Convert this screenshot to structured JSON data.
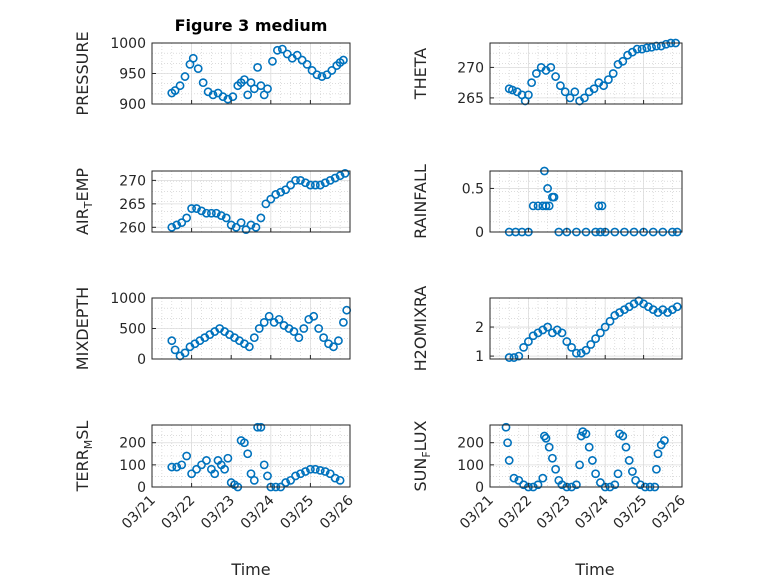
{
  "title": "Figure 3 medium",
  "xlabel": "Time",
  "x_ticks": [
    "03/21",
    "03/22",
    "03/23",
    "03/24",
    "03/25",
    "03/26"
  ],
  "marker_color": "#0072BD",
  "chart_data": [
    {
      "type": "scatter",
      "ylabel": "PRESSURE",
      "ylim": [
        900,
        1000
      ],
      "yticks": [
        "1000",
        "950",
        "900"
      ],
      "ytick_values": [
        1000,
        950,
        900
      ],
      "grid": true,
      "x": [
        "03/21 12:00",
        "03/21 14:00",
        "03/21 17:00",
        "03/21 20:00",
        "03/21 23:00",
        "03/22 01:00",
        "03/22 04:00",
        "03/22 07:00",
        "03/22 10:00",
        "03/22 13:00",
        "03/22 16:00",
        "03/22 19:00",
        "03/22 22:00",
        "03/23 01:00",
        "03/23 04:00",
        "03/23 06:00",
        "03/23 08:00",
        "03/23 10:00",
        "03/23 12:00",
        "03/23 14:00",
        "03/23 16:00",
        "03/23 18:00",
        "03/23 20:00",
        "03/23 22:00",
        "03/24 01:00",
        "03/24 04:00",
        "03/24 07:00",
        "03/24 10:00",
        "03/24 13:00",
        "03/24 16:00",
        "03/24 19:00",
        "03/24 22:00",
        "03/25 01:00",
        "03/25 04:00",
        "03/25 07:00",
        "03/25 10:00",
        "03/25 13:00",
        "03/25 16:00",
        "03/25 18:00",
        "03/25 20:00"
      ],
      "values": [
        918,
        922,
        930,
        945,
        965,
        975,
        958,
        935,
        920,
        915,
        918,
        912,
        908,
        912,
        930,
        935,
        940,
        915,
        935,
        925,
        960,
        930,
        915,
        925,
        970,
        988,
        990,
        982,
        975,
        980,
        972,
        965,
        955,
        948,
        945,
        948,
        955,
        963,
        968,
        972
      ]
    },
    {
      "type": "scatter",
      "ylabel": "THETA",
      "ylim": [
        264,
        274
      ],
      "yticks": [
        "270",
        "265"
      ],
      "ytick_values": [
        270,
        265
      ],
      "grid": true,
      "x": [
        "03/21 12:00",
        "03/21 14:00",
        "03/21 17:00",
        "03/21 20:00",
        "03/21 22:00",
        "03/22 00:00",
        "03/22 02:00",
        "03/22 05:00",
        "03/22 08:00",
        "03/22 11:00",
        "03/22 14:00",
        "03/22 17:00",
        "03/22 20:00",
        "03/22 23:00",
        "03/23 02:00",
        "03/23 05:00",
        "03/23 08:00",
        "03/23 11:00",
        "03/23 14:00",
        "03/23 17:00",
        "03/23 20:00",
        "03/23 23:00",
        "03/24 02:00",
        "03/24 05:00",
        "03/24 08:00",
        "03/24 11:00",
        "03/24 14:00",
        "03/24 17:00",
        "03/24 20:00",
        "03/24 23:00",
        "03/25 02:00",
        "03/25 05:00",
        "03/25 08:00",
        "03/25 11:00",
        "03/25 14:00",
        "03/25 17:00",
        "03/25 20:00"
      ],
      "values": [
        266.5,
        266.3,
        266,
        265.5,
        264.5,
        265.5,
        267.5,
        269,
        270,
        269.5,
        270,
        268.5,
        267,
        266,
        265,
        266,
        264.5,
        265,
        266,
        266.5,
        267.5,
        267,
        268,
        269,
        270.5,
        271,
        272,
        272.5,
        273,
        273,
        273.2,
        273.3,
        273.5,
        273.5,
        273.8,
        274,
        274
      ]
    },
    {
      "type": "scatter",
      "ylabel": "AIR_TEMP",
      "ylim": [
        259,
        272
      ],
      "yticks": [
        "270",
        "265",
        "260"
      ],
      "ytick_values": [
        270,
        265,
        260
      ],
      "grid": true,
      "x": [
        "03/21 12:00",
        "03/21 15:00",
        "03/21 18:00",
        "03/21 21:00",
        "03/22 00:00",
        "03/22 03:00",
        "03/22 06:00",
        "03/22 09:00",
        "03/22 12:00",
        "03/22 15:00",
        "03/22 18:00",
        "03/22 21:00",
        "03/23 00:00",
        "03/23 03:00",
        "03/23 06:00",
        "03/23 09:00",
        "03/23 12:00",
        "03/23 15:00",
        "03/23 18:00",
        "03/23 21:00",
        "03/24 00:00",
        "03/24 03:00",
        "03/24 06:00",
        "03/24 09:00",
        "03/24 12:00",
        "03/24 15:00",
        "03/24 18:00",
        "03/24 21:00",
        "03/25 00:00",
        "03/25 03:00",
        "03/25 06:00",
        "03/25 09:00",
        "03/25 12:00",
        "03/25 15:00",
        "03/25 18:00",
        "03/25 21:00"
      ],
      "values": [
        260,
        260.5,
        261,
        262,
        264,
        264,
        263.5,
        263,
        263,
        263,
        262.5,
        262,
        260.5,
        260,
        261,
        259.5,
        260.5,
        260,
        262,
        265,
        266,
        267,
        267.5,
        268,
        269,
        270,
        270,
        269.5,
        269,
        269,
        269,
        269.5,
        270,
        270.5,
        271,
        271.5
      ]
    },
    {
      "type": "scatter",
      "ylabel": "RAINFALL",
      "ylim": [
        0,
        0.7
      ],
      "yticks": [
        "0.5",
        "0"
      ],
      "ytick_values": [
        0.5,
        0
      ],
      "grid": true,
      "x": [
        "03/21 12:00",
        "03/21 16:00",
        "03/21 20:00",
        "03/22 00:00",
        "03/22 03:00",
        "03/22 06:00",
        "03/22 09:00",
        "03/22 10:00",
        "03/22 11:00",
        "03/22 12:00",
        "03/22 13:00",
        "03/22 15:00",
        "03/22 16:00",
        "03/22 19:00",
        "03/23 00:00",
        "03/23 06:00",
        "03/23 12:00",
        "03/23 18:00",
        "03/23 20:00",
        "03/23 21:00",
        "03/23 22:00",
        "03/24 00:00",
        "03/24 06:00",
        "03/24 12:00",
        "03/24 18:00",
        "03/25 00:00",
        "03/25 06:00",
        "03/25 12:00",
        "03/25 18:00",
        "03/25 21:00"
      ],
      "values": [
        0,
        0,
        0,
        0,
        0.3,
        0.3,
        0.3,
        0.7,
        0.3,
        0.5,
        0.3,
        0.4,
        0.4,
        0,
        0,
        0,
        0,
        0,
        0.3,
        0,
        0.3,
        0,
        0,
        0,
        0,
        0,
        0,
        0,
        0,
        0
      ]
    },
    {
      "type": "scatter",
      "ylabel": "MIXDEPTH",
      "ylim": [
        0,
        1000
      ],
      "yticks": [
        "1000",
        "500",
        "0"
      ],
      "ytick_values": [
        1000,
        500,
        0
      ],
      "grid": true,
      "x": [
        "03/21 12:00",
        "03/21 14:00",
        "03/21 17:00",
        "03/21 20:00",
        "03/21 23:00",
        "03/22 02:00",
        "03/22 05:00",
        "03/22 08:00",
        "03/22 11:00",
        "03/22 14:00",
        "03/22 17:00",
        "03/22 20:00",
        "03/22 23:00",
        "03/23 02:00",
        "03/23 05:00",
        "03/23 08:00",
        "03/23 11:00",
        "03/23 14:00",
        "03/23 17:00",
        "03/23 20:00",
        "03/23 23:00",
        "03/24 02:00",
        "03/24 05:00",
        "03/24 08:00",
        "03/24 11:00",
        "03/24 14:00",
        "03/24 17:00",
        "03/24 20:00",
        "03/24 23:00",
        "03/25 02:00",
        "03/25 05:00",
        "03/25 08:00",
        "03/25 11:00",
        "03/25 14:00",
        "03/25 17:00",
        "03/25 20:00",
        "03/25 22:00"
      ],
      "values": [
        300,
        150,
        50,
        100,
        200,
        250,
        300,
        350,
        400,
        450,
        500,
        450,
        400,
        350,
        300,
        250,
        200,
        350,
        500,
        600,
        700,
        600,
        650,
        550,
        500,
        450,
        350,
        500,
        650,
        700,
        500,
        350,
        250,
        200,
        300,
        600,
        800
      ]
    },
    {
      "type": "scatter",
      "ylabel": "H2OMIXRA",
      "ylim": [
        0.9,
        3
      ],
      "yticks": [
        "2",
        "1"
      ],
      "ytick_values": [
        2,
        1
      ],
      "grid": true,
      "x": [
        "03/21 12:00",
        "03/21 15:00",
        "03/21 18:00",
        "03/21 21:00",
        "03/22 00:00",
        "03/22 03:00",
        "03/22 06:00",
        "03/22 09:00",
        "03/22 12:00",
        "03/22 15:00",
        "03/22 18:00",
        "03/22 21:00",
        "03/23 00:00",
        "03/23 03:00",
        "03/23 06:00",
        "03/23 09:00",
        "03/23 12:00",
        "03/23 15:00",
        "03/23 18:00",
        "03/23 21:00",
        "03/24 00:00",
        "03/24 03:00",
        "03/24 06:00",
        "03/24 09:00",
        "03/24 12:00",
        "03/24 15:00",
        "03/24 18:00",
        "03/24 21:00",
        "03/25 00:00",
        "03/25 03:00",
        "03/25 06:00",
        "03/25 09:00",
        "03/25 12:00",
        "03/25 15:00",
        "03/25 18:00",
        "03/25 21:00"
      ],
      "values": [
        0.95,
        0.95,
        1,
        1.3,
        1.5,
        1.7,
        1.8,
        1.9,
        2,
        1.8,
        1.9,
        1.8,
        1.5,
        1.3,
        1.1,
        1.1,
        1.2,
        1.4,
        1.6,
        1.8,
        2,
        2.2,
        2.4,
        2.5,
        2.6,
        2.7,
        2.8,
        2.9,
        2.8,
        2.7,
        2.6,
        2.5,
        2.6,
        2.5,
        2.6,
        2.7
      ]
    },
    {
      "type": "scatter",
      "ylabel": "TERR_MSL",
      "ylim": [
        0,
        280
      ],
      "yticks": [
        "200",
        "100",
        "0"
      ],
      "ytick_values": [
        200,
        100,
        0
      ],
      "grid": true,
      "x": [
        "03/21 12:00",
        "03/21 15:00",
        "03/21 18:00",
        "03/21 21:00",
        "03/22 00:00",
        "03/22 03:00",
        "03/22 06:00",
        "03/22 09:00",
        "03/22 12:00",
        "03/22 14:00",
        "03/22 16:00",
        "03/22 18:00",
        "03/22 20:00",
        "03/22 22:00",
        "03/23 00:00",
        "03/23 02:00",
        "03/23 04:00",
        "03/23 06:00",
        "03/23 08:00",
        "03/23 10:00",
        "03/23 12:00",
        "03/23 14:00",
        "03/23 16:00",
        "03/23 18:00",
        "03/23 20:00",
        "03/23 22:00",
        "03/24 00:00",
        "03/24 03:00",
        "03/24 06:00",
        "03/24 09:00",
        "03/24 12:00",
        "03/24 15:00",
        "03/24 18:00",
        "03/24 21:00",
        "03/25 00:00",
        "03/25 03:00",
        "03/25 06:00",
        "03/25 09:00",
        "03/25 12:00",
        "03/25 15:00",
        "03/25 18:00"
      ],
      "values": [
        90,
        90,
        100,
        140,
        60,
        80,
        100,
        120,
        80,
        60,
        120,
        100,
        80,
        130,
        20,
        10,
        0,
        210,
        200,
        150,
        60,
        30,
        270,
        270,
        100,
        50,
        0,
        0,
        0,
        20,
        30,
        50,
        60,
        70,
        80,
        80,
        75,
        70,
        60,
        40,
        30
      ]
    },
    {
      "type": "scatter",
      "ylabel": "SUN_FLUX",
      "ylim": [
        0,
        280
      ],
      "yticks": [
        "200",
        "100",
        "0"
      ],
      "ytick_values": [
        200,
        100,
        0
      ],
      "grid": true,
      "x": [
        "03/21 10:00",
        "03/21 11:00",
        "03/21 12:00",
        "03/21 15:00",
        "03/21 18:00",
        "03/21 21:00",
        "03/22 00:00",
        "03/22 03:00",
        "03/22 06:00",
        "03/22 09:00",
        "03/22 10:00",
        "03/22 11:00",
        "03/22 13:00",
        "03/22 15:00",
        "03/22 17:00",
        "03/22 19:00",
        "03/22 21:00",
        "03/23 00:00",
        "03/23 03:00",
        "03/23 06:00",
        "03/23 08:00",
        "03/23 09:00",
        "03/23 10:00",
        "03/23 12:00",
        "03/23 14:00",
        "03/23 16:00",
        "03/23 18:00",
        "03/23 21:00",
        "03/24 00:00",
        "03/24 03:00",
        "03/24 06:00",
        "03/24 08:00",
        "03/24 09:00",
        "03/24 11:00",
        "03/24 13:00",
        "03/24 15:00",
        "03/24 17:00",
        "03/24 19:00",
        "03/24 22:00",
        "03/25 01:00",
        "03/25 04:00",
        "03/25 07:00",
        "03/25 08:00",
        "03/25 09:00",
        "03/25 11:00",
        "03/25 13:00"
      ],
      "values": [
        270,
        200,
        120,
        40,
        30,
        10,
        0,
        0,
        10,
        40,
        230,
        220,
        180,
        130,
        80,
        30,
        10,
        0,
        0,
        10,
        100,
        230,
        250,
        240,
        180,
        120,
        60,
        20,
        0,
        0,
        10,
        60,
        240,
        230,
        180,
        120,
        70,
        30,
        10,
        0,
        0,
        0,
        80,
        150,
        190,
        210
      ]
    }
  ]
}
